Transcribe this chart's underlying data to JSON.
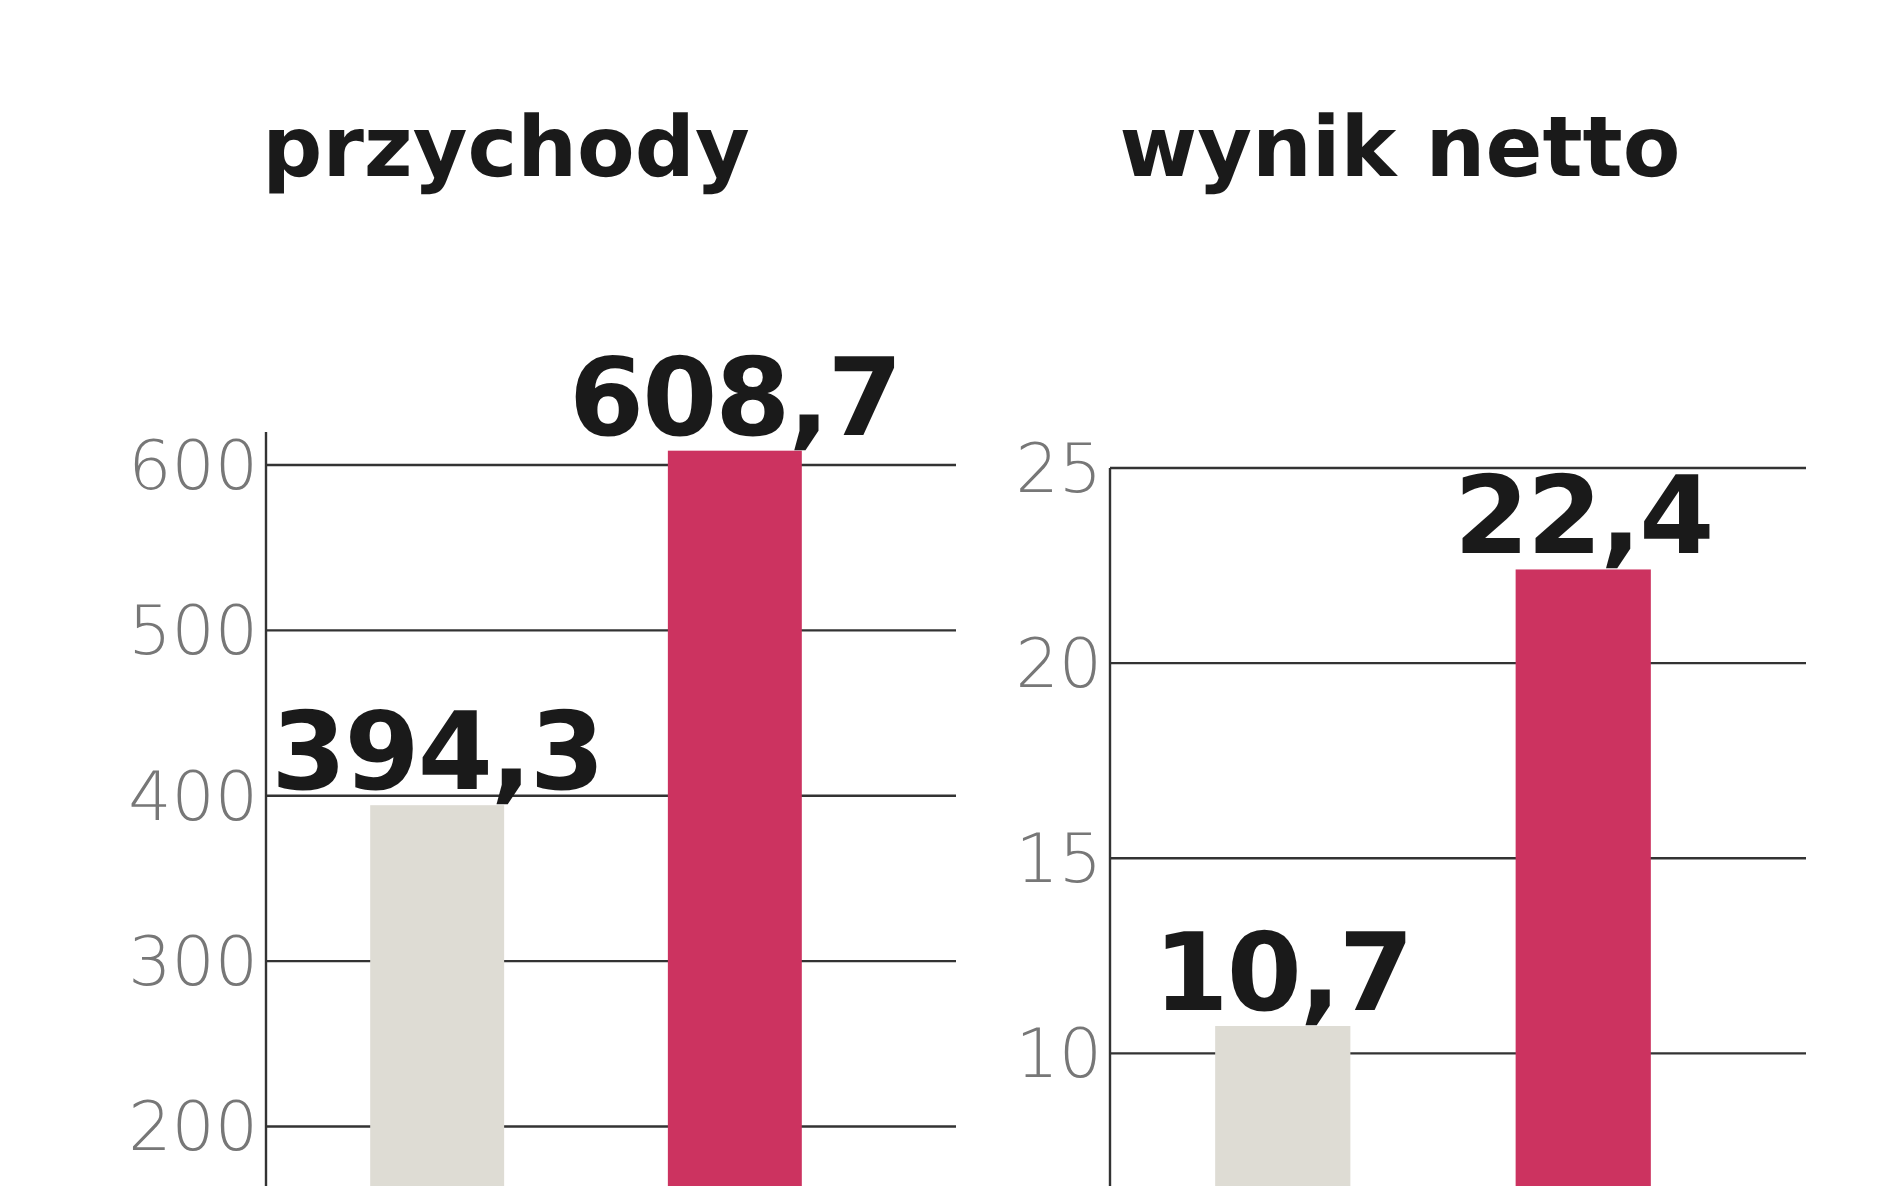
{
  "chart_data": [
    {
      "type": "bar",
      "title": "przychody",
      "categories": [
        null,
        null
      ],
      "values": [
        394.3,
        608.7
      ],
      "colors": [
        "#dedcd4",
        "#cc3360"
      ],
      "value_labels": [
        "394,3",
        "608,7"
      ],
      "ylim": [
        164,
        620
      ],
      "yticks": [
        200,
        300,
        400,
        500,
        600
      ],
      "grid": "y"
    },
    {
      "type": "bar",
      "title": "wynik netto",
      "categories": [
        null,
        null
      ],
      "values": [
        10.7,
        22.4
      ],
      "colors": [
        "#dedcd4",
        "#cc3360"
      ],
      "value_labels": [
        "10,7",
        "22,4"
      ],
      "ylim": [
        6.6,
        25
      ],
      "yticks": [
        10,
        15,
        20,
        25
      ],
      "grid": "y"
    }
  ]
}
